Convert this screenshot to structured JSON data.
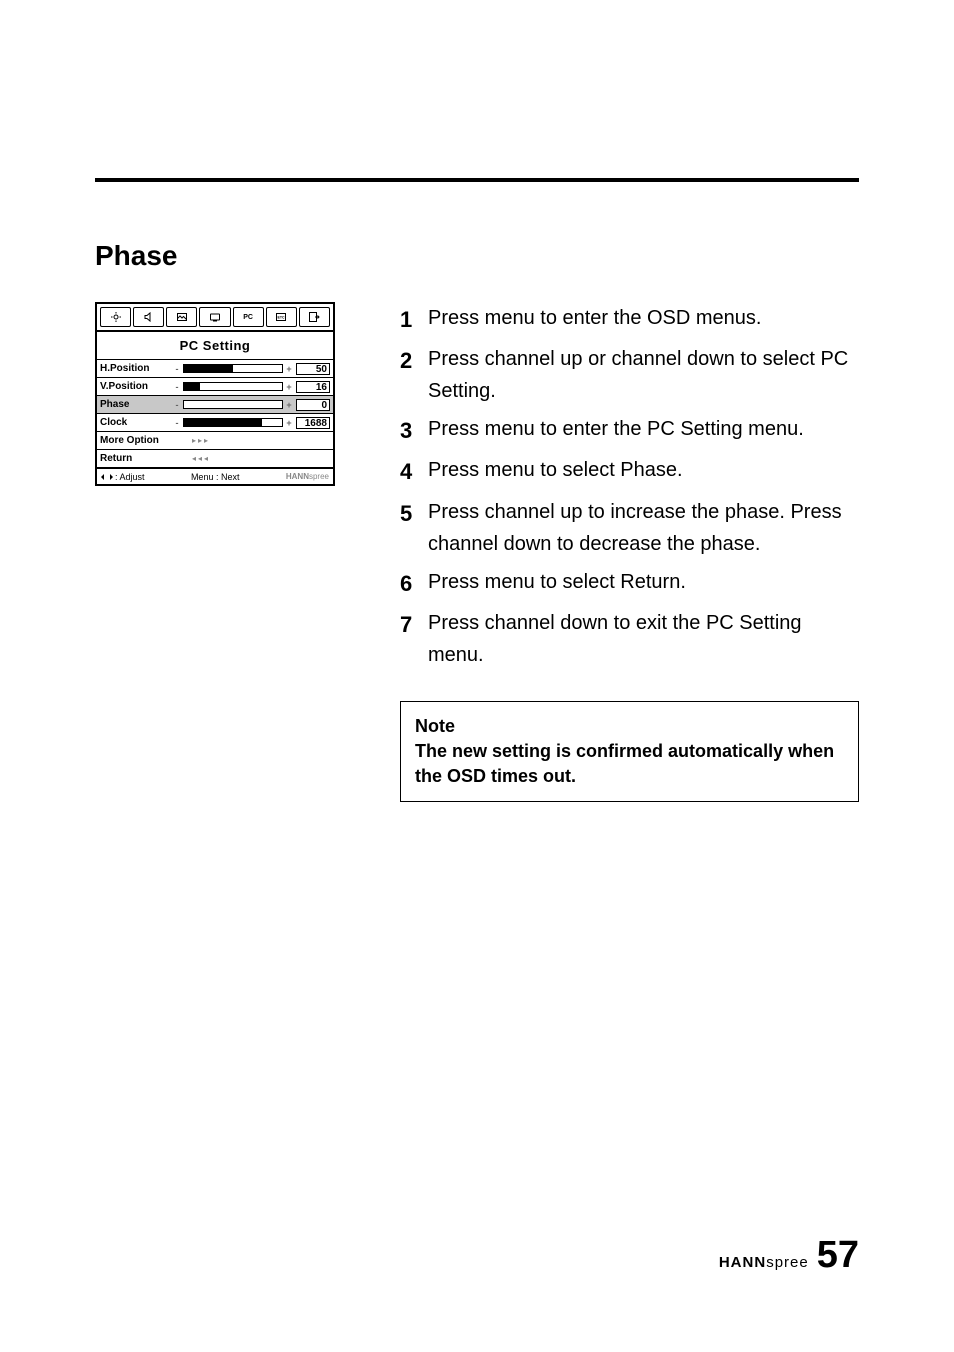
{
  "section_title": "Phase",
  "osd": {
    "title": "PC Setting",
    "tabs": [
      "",
      "",
      "",
      "",
      "PC",
      "",
      ""
    ],
    "selected_tab": 4,
    "rows": [
      {
        "label": "H.Position",
        "value": "50",
        "fill": 50,
        "has_bar": true,
        "selected": false
      },
      {
        "label": "V.Position",
        "value": "16",
        "fill": 16,
        "has_bar": true,
        "selected": false
      },
      {
        "label": "Phase",
        "value": "0",
        "fill": 0,
        "has_bar": true,
        "selected": true
      },
      {
        "label": "Clock",
        "value": "1688",
        "fill": 80,
        "has_bar": true,
        "selected": false
      },
      {
        "label": "More Option",
        "arrows": "▸▸▸",
        "has_bar": false,
        "selected": false
      },
      {
        "label": "Return",
        "arrows": "◂◂◂",
        "has_bar": false,
        "selected": false
      }
    ],
    "footer_left": ": Adjust",
    "footer_mid": "Menu : Next",
    "footer_brand_bold": "HANN",
    "footer_brand_light": "spree"
  },
  "steps": [
    "Press menu to enter the OSD menus.",
    "Press channel up or channel down to select PC Setting.",
    "Press menu to enter the PC Setting menu.",
    "Press menu to select Phase.",
    "Press channel up to increase the phase. Press channel down to decrease the phase.",
    "Press menu to select Return.",
    "Press channel down to exit the PC Setting menu."
  ],
  "note_title": "Note",
  "note_body": "The new setting is confirmed automatically when the OSD times out.",
  "footer_brand_bold": "HANN",
  "footer_brand_light": "spree",
  "page_number": "57"
}
